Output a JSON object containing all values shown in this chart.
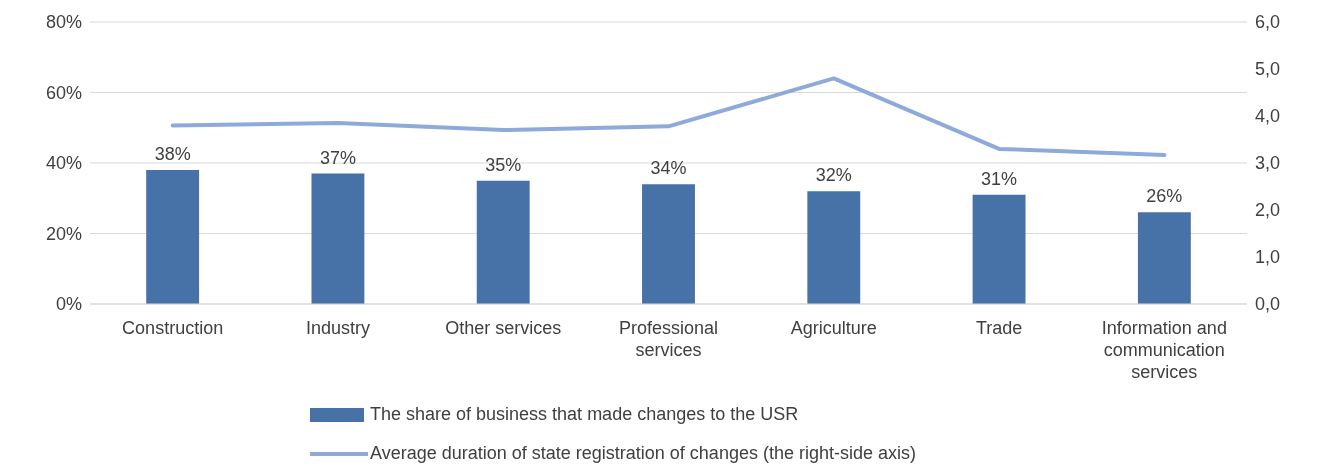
{
  "chart_data": {
    "type": "bar",
    "categories": [
      "Construction",
      "Industry",
      "Other services",
      "Professional services",
      "Agriculture",
      "Trade",
      "Information and communication services"
    ],
    "series": [
      {
        "name": "The share of business that made changes to the USR",
        "color": "#4672a8",
        "values": [
          38,
          37,
          35,
          34,
          32,
          31,
          26
        ],
        "value_labels": [
          "38%",
          "37%",
          "35%",
          "34%",
          "32%",
          "31%",
          "26%"
        ]
      },
      {
        "name": "Average duration of state registration of changes (the right-side axis)",
        "type": "line",
        "axis": "y2",
        "color": "#8eaadb",
        "values": [
          3.8,
          3.85,
          3.7,
          3.78,
          4.8,
          3.3,
          3.17
        ]
      }
    ],
    "ylim": [
      0,
      80
    ],
    "yticks": [
      {
        "value": 0,
        "label": "0%"
      },
      {
        "value": 20,
        "label": "20%"
      },
      {
        "value": 40,
        "label": "40%"
      },
      {
        "value": 60,
        "label": "60%"
      },
      {
        "value": 80,
        "label": "80%"
      }
    ],
    "y2lim": [
      0,
      6
    ],
    "y2ticks": [
      {
        "value": 0,
        "label": "0,0"
      },
      {
        "value": 1,
        "label": "1,0"
      },
      {
        "value": 2,
        "label": "2,0"
      },
      {
        "value": 3,
        "label": "3,0"
      },
      {
        "value": 4,
        "label": "4,0"
      },
      {
        "value": 5,
        "label": "5,0"
      },
      {
        "value": 6,
        "label": "6,0"
      }
    ],
    "grid": "y",
    "legend": "bottom",
    "marker": "none",
    "line_style": "solid"
  }
}
